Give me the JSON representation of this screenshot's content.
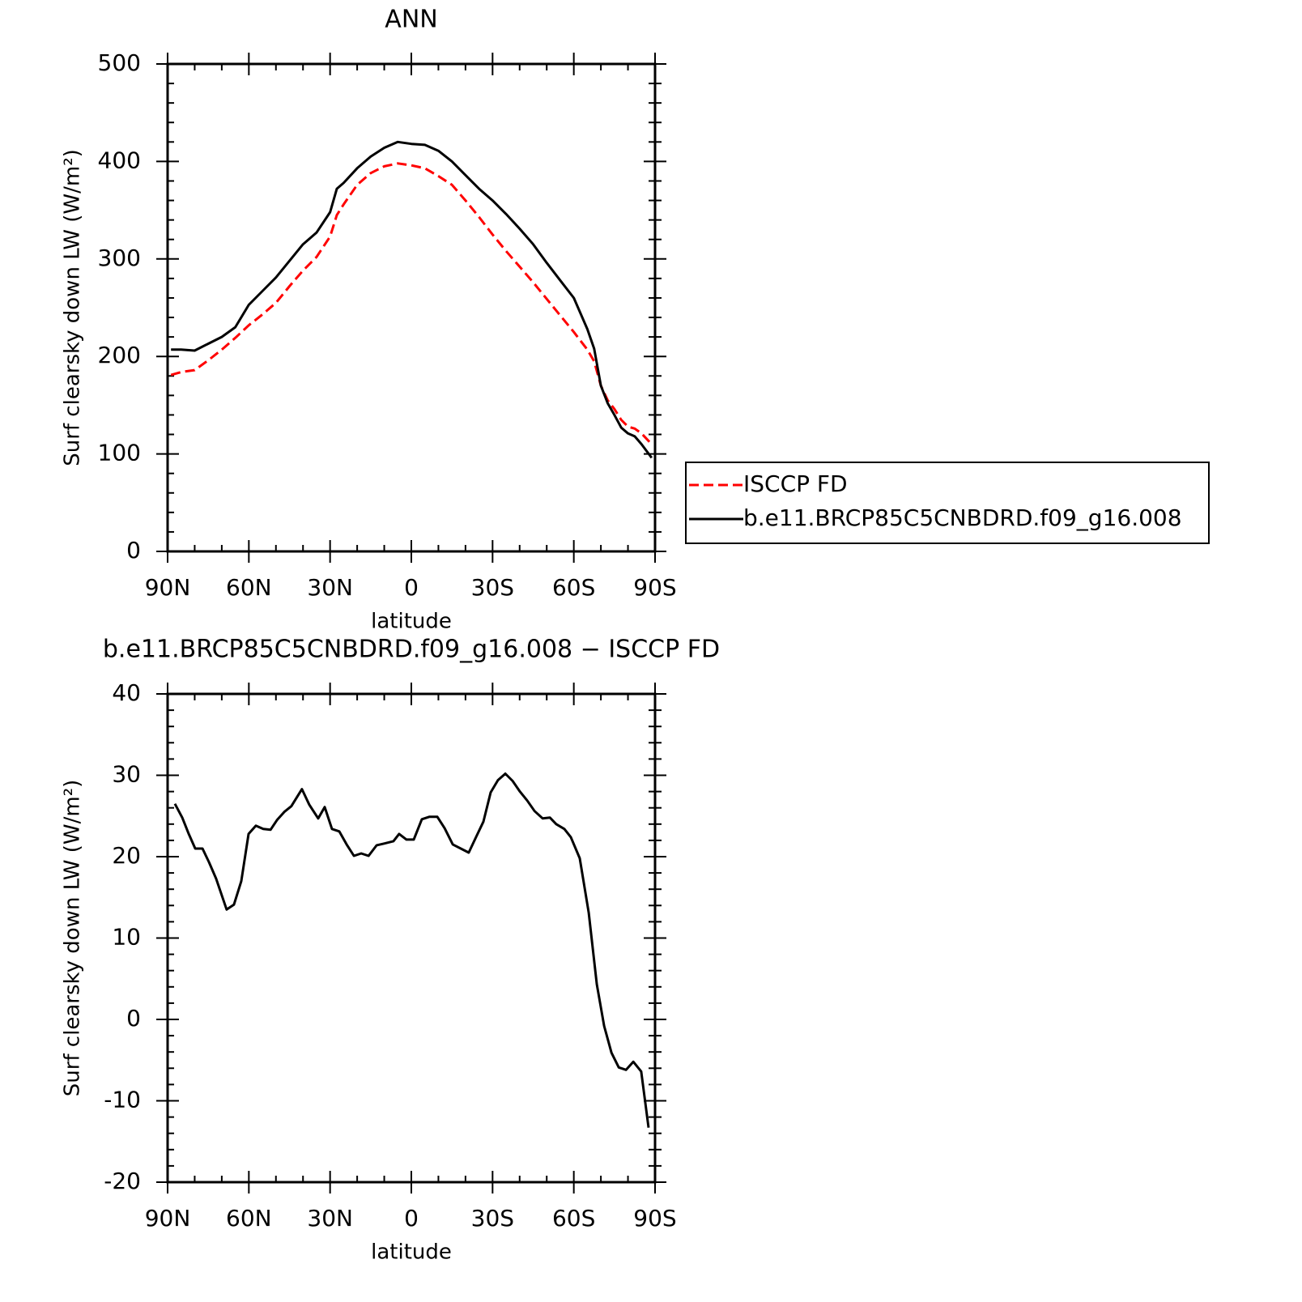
{
  "chart_data": [
    {
      "type": "line",
      "title": "ANN",
      "xlabel": "latitude",
      "ylabel": "Surf clearsky down LW (W/m²)",
      "x": [
        88.75,
        85,
        80,
        75,
        70,
        65,
        60,
        55,
        50,
        45,
        40,
        35,
        30,
        27.5,
        25,
        20,
        15,
        10,
        5,
        0,
        -5,
        -10,
        -15,
        -20,
        -25,
        -30,
        -35,
        -40,
        -45,
        -50,
        -55,
        -60,
        -65,
        -67.5,
        -70,
        -72.5,
        -75,
        -77.5,
        -80,
        -82.5,
        -85,
        -88.75
      ],
      "series": [
        {
          "name": "ISCCP FD",
          "color": "#ff0000",
          "line_style": "dashed",
          "values": [
            181,
            184,
            186,
            196,
            207,
            219,
            232,
            243,
            255,
            272,
            288,
            302,
            323,
            345,
            356,
            376,
            388,
            395,
            398,
            396,
            393,
            385,
            376,
            360,
            343,
            325,
            308,
            292,
            276,
            259,
            242,
            225,
            207,
            195,
            170,
            155,
            146,
            135,
            128,
            126,
            121,
            110
          ]
        },
        {
          "name": "b.e11.BRCP85C5CNBDRD.f09_g16.008",
          "color": "#000000",
          "line_style": "solid",
          "values": [
            207,
            207,
            206,
            213,
            220,
            230,
            253,
            267,
            281,
            298,
            315,
            327,
            348,
            372,
            378,
            393,
            405,
            414,
            420,
            418,
            417,
            411,
            400,
            386,
            372,
            360,
            346,
            331,
            315,
            296,
            278,
            260,
            228,
            208,
            170,
            152,
            140,
            127,
            121,
            118,
            110,
            96
          ]
        }
      ],
      "xlim": [
        90,
        -90
      ],
      "xticks": [
        {
          "value": 90,
          "label": "90N"
        },
        {
          "value": 60,
          "label": "60N"
        },
        {
          "value": 30,
          "label": "30N"
        },
        0,
        {
          "value": -30,
          "label": "30S"
        },
        {
          "value": -60,
          "label": "60S"
        },
        {
          "value": -90,
          "label": "90S"
        }
      ],
      "ylim": [
        0,
        500
      ],
      "yticks": [
        0,
        100,
        200,
        300,
        400,
        500
      ],
      "legend": "right"
    },
    {
      "type": "line",
      "title": "b.e11.BRCP85C5CNBDRD.f09_g16.008 − ISCCP FD",
      "xlabel": "latitude",
      "ylabel": "Surf clearsky down LW (W/m²)",
      "x": [
        87.3,
        84.6,
        82.2,
        79.8,
        77.1,
        74.7,
        72.1,
        68.2,
        65.5,
        62.8,
        60.1,
        57.4,
        54.7,
        52.0,
        49.6,
        46.9,
        44.3,
        40.4,
        37.7,
        34.4,
        32.0,
        29.3,
        26.6,
        23.9,
        21.2,
        18.5,
        15.8,
        12.8,
        10.2,
        6.6,
        4.5,
        1.8,
        -0.9,
        -3.9,
        -6.6,
        -9.6,
        -12.3,
        -15.3,
        -21.2,
        -23.9,
        -26.6,
        -29.3,
        -32.0,
        -34.7,
        -37.4,
        -40.1,
        -42.8,
        -45.5,
        -48.5,
        -51.2,
        -53.5,
        -56.5,
        -58.9,
        -62.2,
        -65.5,
        -68.5,
        -71.2,
        -73.9,
        -76.6,
        -79.3,
        -82.0,
        -84.9,
        -87.6
      ],
      "values": [
        26.5,
        24.8,
        22.8,
        21.0,
        21.0,
        19.3,
        17.3,
        13.5,
        14.1,
        17.0,
        22.8,
        23.8,
        23.4,
        23.3,
        24.5,
        25.5,
        26.2,
        28.3,
        26.4,
        24.7,
        26.1,
        23.4,
        23.1,
        21.5,
        20.1,
        20.4,
        20.1,
        21.4,
        21.6,
        21.9,
        22.8,
        22.1,
        22.1,
        24.6,
        24.9,
        24.9,
        23.5,
        21.5,
        20.5,
        22.4,
        24.3,
        27.9,
        29.4,
        30.2,
        29.3,
        28.0,
        26.9,
        25.6,
        24.7,
        24.8,
        24.0,
        23.4,
        22.4,
        19.8,
        13.1,
        4.3,
        -0.8,
        -4.1,
        -5.9,
        -6.2,
        -5.2,
        -6.4,
        -13.3
      ],
      "color": "#000000",
      "xlim": [
        90,
        -90
      ],
      "xticks": [
        {
          "value": 90,
          "label": "90N"
        },
        {
          "value": 60,
          "label": "60N"
        },
        {
          "value": 30,
          "label": "30N"
        },
        0,
        {
          "value": -30,
          "label": "30S"
        },
        {
          "value": -60,
          "label": "60S"
        },
        {
          "value": -90,
          "label": "90S"
        }
      ],
      "ylim": [
        -20,
        40
      ],
      "yticks": [
        -20,
        -10,
        0,
        10,
        20,
        30,
        40
      ]
    }
  ]
}
